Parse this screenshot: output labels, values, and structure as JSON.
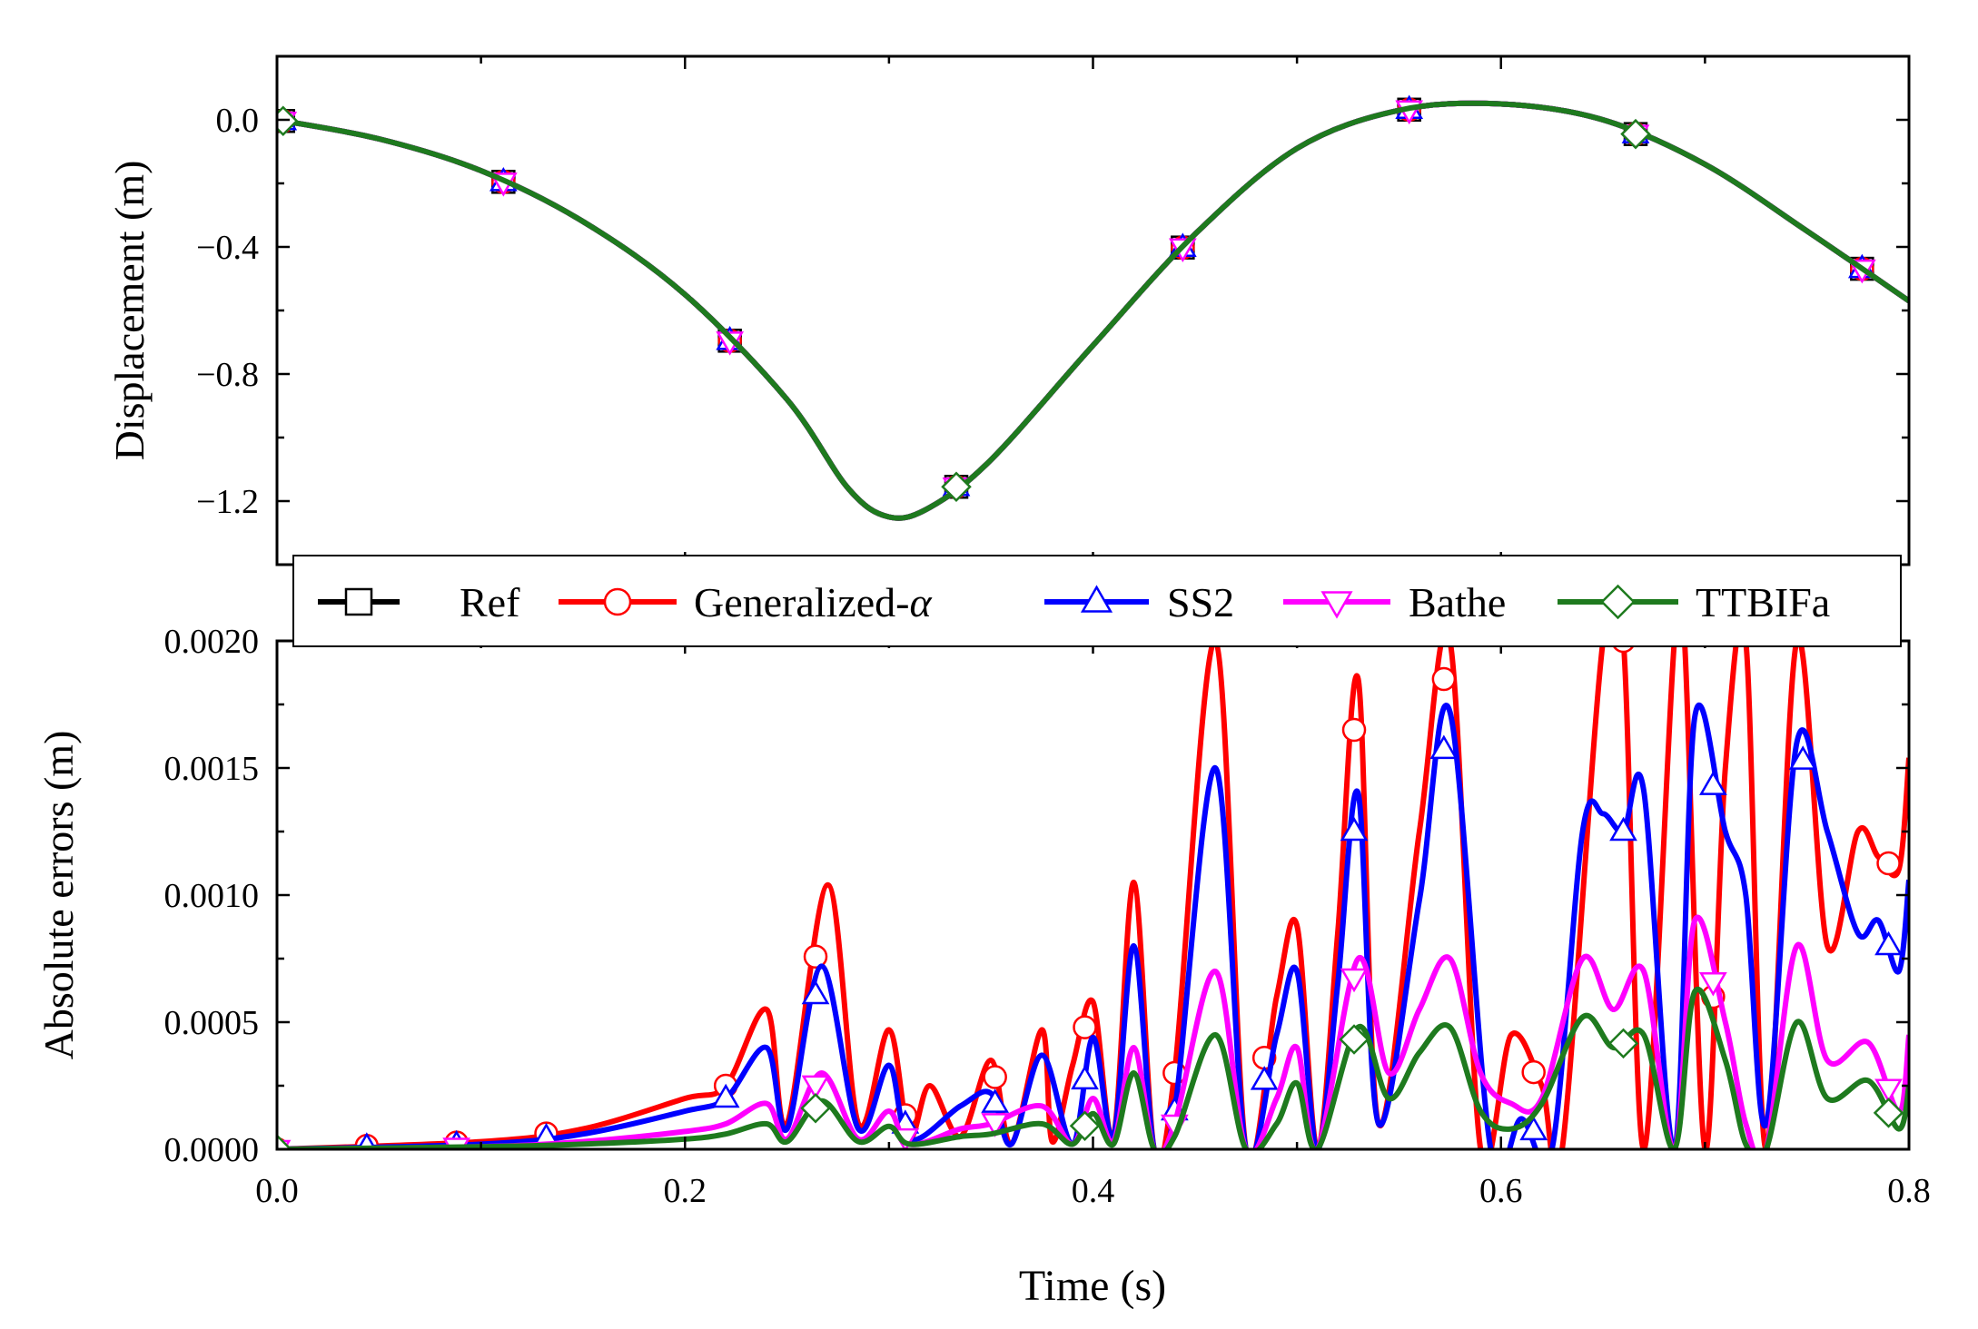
{
  "chart_data": [
    {
      "type": "line",
      "panel": "top",
      "title": "",
      "xlabel": "",
      "ylabel": "Displacement (m)",
      "xlim": [
        0.0,
        0.8
      ],
      "ylim": [
        -1.4,
        0.2
      ],
      "xticks": [
        0.0,
        0.2,
        0.4,
        0.6,
        0.8
      ],
      "yticks": [
        0.0,
        -0.4,
        -0.8,
        -1.2
      ],
      "ytick_labels": [
        "0.0",
        "−0.4",
        "−0.8",
        "−1.2"
      ],
      "grid": false,
      "series": [
        {
          "name": "Ref",
          "color": "#000000",
          "marker": "square",
          "x": [
            0.0,
            0.05,
            0.1,
            0.15,
            0.2,
            0.25,
            0.28,
            0.3,
            0.32,
            0.35,
            0.4,
            0.45,
            0.5,
            0.55,
            0.6,
            0.65,
            0.7,
            0.75,
            0.8
          ],
          "y": [
            0.0,
            -0.06,
            -0.16,
            -0.32,
            -0.55,
            -0.88,
            -1.16,
            -1.25,
            -1.22,
            -1.07,
            -0.71,
            -0.36,
            -0.09,
            0.03,
            0.05,
            0.0,
            -0.14,
            -0.35,
            -0.57
          ],
          "marker_x": [
            0.003,
            0.111,
            0.222,
            0.333,
            0.444,
            0.555,
            0.666,
            0.777
          ]
        },
        {
          "name": "Generalized-α",
          "color": "#ff0000",
          "marker": "circle",
          "x": [
            0.0,
            0.05,
            0.1,
            0.15,
            0.2,
            0.25,
            0.28,
            0.3,
            0.32,
            0.35,
            0.4,
            0.45,
            0.5,
            0.55,
            0.6,
            0.65,
            0.7,
            0.75,
            0.8
          ],
          "y": [
            0.0,
            -0.06,
            -0.16,
            -0.32,
            -0.55,
            -0.88,
            -1.16,
            -1.25,
            -1.22,
            -1.07,
            -0.71,
            -0.36,
            -0.09,
            0.03,
            0.05,
            0.0,
            -0.14,
            -0.35,
            -0.57
          ],
          "marker_x": [
            0.003,
            0.111,
            0.222,
            0.333,
            0.444,
            0.555,
            0.666,
            0.777
          ]
        },
        {
          "name": "SS2",
          "color": "#0000ff",
          "marker": "triangle-up",
          "x": [
            0.0,
            0.05,
            0.1,
            0.15,
            0.2,
            0.25,
            0.28,
            0.3,
            0.32,
            0.35,
            0.4,
            0.45,
            0.5,
            0.55,
            0.6,
            0.65,
            0.7,
            0.75,
            0.8
          ],
          "y": [
            0.0,
            -0.06,
            -0.16,
            -0.32,
            -0.55,
            -0.88,
            -1.16,
            -1.25,
            -1.22,
            -1.07,
            -0.71,
            -0.36,
            -0.09,
            0.03,
            0.05,
            0.0,
            -0.14,
            -0.35,
            -0.57
          ],
          "marker_x": [
            0.003,
            0.111,
            0.222,
            0.333,
            0.444,
            0.555,
            0.666,
            0.777
          ]
        },
        {
          "name": "Bathe",
          "color": "#ff00ff",
          "marker": "triangle-down",
          "x": [
            0.0,
            0.05,
            0.1,
            0.15,
            0.2,
            0.25,
            0.28,
            0.3,
            0.32,
            0.35,
            0.4,
            0.45,
            0.5,
            0.55,
            0.6,
            0.65,
            0.7,
            0.75,
            0.8
          ],
          "y": [
            0.0,
            -0.06,
            -0.16,
            -0.32,
            -0.55,
            -0.88,
            -1.16,
            -1.25,
            -1.22,
            -1.07,
            -0.71,
            -0.36,
            -0.09,
            0.03,
            0.05,
            0.0,
            -0.14,
            -0.35,
            -0.57
          ],
          "marker_x": [
            0.003,
            0.111,
            0.222,
            0.333,
            0.444,
            0.555,
            0.666,
            0.777
          ]
        },
        {
          "name": "TTBIFa",
          "color": "#1e7a1e",
          "marker": "diamond",
          "x": [
            0.0,
            0.05,
            0.1,
            0.15,
            0.2,
            0.25,
            0.28,
            0.3,
            0.32,
            0.35,
            0.4,
            0.45,
            0.5,
            0.55,
            0.6,
            0.65,
            0.7,
            0.75,
            0.8
          ],
          "y": [
            0.0,
            -0.06,
            -0.16,
            -0.32,
            -0.55,
            -0.88,
            -1.16,
            -1.25,
            -1.22,
            -1.07,
            -0.71,
            -0.36,
            -0.09,
            0.03,
            0.05,
            0.0,
            -0.14,
            -0.35,
            -0.57
          ],
          "marker_x": [
            0.003,
            0.333,
            0.666
          ]
        }
      ]
    },
    {
      "type": "line",
      "panel": "bottom",
      "title": "",
      "xlabel": "Time (s)",
      "ylabel": "Absolute errors (m)",
      "xlim": [
        0.0,
        0.8
      ],
      "ylim": [
        0.0,
        0.002
      ],
      "xticks": [
        0.0,
        0.2,
        0.4,
        0.6,
        0.8
      ],
      "xtick_labels": [
        "0.0",
        "0.2",
        "0.4",
        "0.6",
        "0.8"
      ],
      "yticks": [
        0.0,
        0.0005,
        0.001,
        0.0015,
        0.002
      ],
      "ytick_labels": [
        "0.0000",
        "0.0005",
        "0.0010",
        "0.0015",
        "0.0020"
      ],
      "grid": false,
      "series": [
        {
          "name": "Generalized-α",
          "color": "#ff0000",
          "marker": "circle",
          "x": [
            0.0,
            0.1,
            0.15,
            0.2,
            0.22,
            0.24,
            0.25,
            0.27,
            0.285,
            0.3,
            0.31,
            0.32,
            0.335,
            0.35,
            0.36,
            0.375,
            0.38,
            0.39,
            0.4,
            0.41,
            0.42,
            0.43,
            0.44,
            0.46,
            0.475,
            0.49,
            0.5,
            0.51,
            0.52,
            0.53,
            0.54,
            0.56,
            0.575,
            0.59,
            0.605,
            0.62,
            0.63,
            0.65,
            0.66,
            0.67,
            0.685,
            0.69,
            0.7,
            0.71,
            0.72,
            0.73,
            0.745,
            0.76,
            0.775,
            0.785,
            0.795,
            0.8
          ],
          "y": [
            0.0,
            3e-05,
            8e-05,
            0.0002,
            0.00025,
            0.00055,
            0.0001,
            0.00104,
            0.0001,
            0.00047,
            5e-05,
            0.00025,
            5e-05,
            0.00035,
            2e-05,
            0.00047,
            3e-05,
            0.00033,
            0.00058,
            5e-05,
            0.00105,
            0.0,
            0.0003,
            0.002,
            0.0,
            0.0006,
            0.00088,
            0.0,
            0.00085,
            0.00185,
            0.0001,
            0.00125,
            0.002,
            0.0,
            0.00045,
            0.00025,
            0.0,
            0.002,
            0.002,
            0.0,
            0.002,
            0.002,
            0.0,
            0.0015,
            0.002,
            0.0,
            0.002,
            0.0008,
            0.00125,
            0.00115,
            0.0011,
            0.00154
          ],
          "marker_x": [
            0.0,
            0.044,
            0.088,
            0.132,
            0.22,
            0.264,
            0.308,
            0.352,
            0.396,
            0.44,
            0.484,
            0.528,
            0.572,
            0.616,
            0.66,
            0.704,
            0.79
          ]
        },
        {
          "name": "SS2",
          "color": "#0000ff",
          "marker": "triangle-up",
          "x": [
            0.0,
            0.1,
            0.15,
            0.2,
            0.22,
            0.24,
            0.25,
            0.267,
            0.285,
            0.3,
            0.31,
            0.335,
            0.35,
            0.36,
            0.375,
            0.39,
            0.4,
            0.41,
            0.42,
            0.43,
            0.44,
            0.46,
            0.475,
            0.49,
            0.5,
            0.51,
            0.52,
            0.53,
            0.54,
            0.56,
            0.575,
            0.595,
            0.61,
            0.625,
            0.64,
            0.65,
            0.66,
            0.67,
            0.685,
            0.695,
            0.71,
            0.72,
            0.73,
            0.745,
            0.76,
            0.775,
            0.785,
            0.795,
            0.8
          ],
          "y": [
            0.0,
            2e-05,
            6e-05,
            0.00015,
            0.0002,
            0.0004,
            8e-05,
            0.00072,
            8e-05,
            0.00033,
            4e-05,
            0.00017,
            0.00022,
            2e-05,
            0.00037,
            2e-05,
            0.00044,
            5e-05,
            0.0008,
            0.0,
            0.00015,
            0.0015,
            0.0,
            0.00045,
            0.0007,
            0.0,
            0.00065,
            0.0014,
            0.0001,
            0.00098,
            0.00172,
            0.0,
            0.00012,
            0.0,
            0.00125,
            0.00132,
            0.00125,
            0.00141,
            0.0,
            0.0017,
            0.00125,
            0.001,
            0.0001,
            0.0016,
            0.00125,
            0.00085,
            0.0009,
            0.0007,
            0.00106
          ],
          "marker_x": [
            0.0,
            0.044,
            0.088,
            0.132,
            0.22,
            0.264,
            0.308,
            0.352,
            0.396,
            0.44,
            0.484,
            0.528,
            0.572,
            0.616,
            0.66,
            0.704,
            0.748,
            0.79
          ]
        },
        {
          "name": "Bathe",
          "color": "#ff00ff",
          "marker": "triangle-down",
          "x": [
            0.0,
            0.1,
            0.15,
            0.2,
            0.22,
            0.24,
            0.25,
            0.267,
            0.285,
            0.3,
            0.31,
            0.335,
            0.35,
            0.375,
            0.39,
            0.4,
            0.41,
            0.42,
            0.43,
            0.44,
            0.46,
            0.475,
            0.49,
            0.5,
            0.51,
            0.53,
            0.545,
            0.56,
            0.575,
            0.59,
            0.605,
            0.62,
            0.64,
            0.655,
            0.67,
            0.685,
            0.695,
            0.71,
            0.72,
            0.73,
            0.745,
            0.76,
            0.78,
            0.795,
            0.8
          ],
          "y": [
            0.0,
            1e-05,
            3e-05,
            7e-05,
            0.0001,
            0.00018,
            4e-05,
            0.0003,
            4e-05,
            0.00015,
            2e-05,
            8e-05,
            0.0001,
            0.00017,
            2e-05,
            0.0002,
            3e-05,
            0.0004,
            0.0,
            0.0001,
            0.0007,
            0.0,
            0.0002,
            0.0004,
            0.0,
            0.00075,
            0.0003,
            0.00055,
            0.00075,
            0.0003,
            0.00018,
            0.0002,
            0.00075,
            0.00055,
            0.0007,
            0.0,
            0.0009,
            0.0005,
            0.0001,
            0.0,
            0.0008,
            0.00035,
            0.00042,
            0.00015,
            0.00045
          ],
          "marker_x": [
            0.0,
            0.088,
            0.264,
            0.308,
            0.352,
            0.44,
            0.528,
            0.704,
            0.79
          ]
        },
        {
          "name": "TTBIFa",
          "color": "#1e7a1e",
          "marker": "diamond",
          "x": [
            0.0,
            0.1,
            0.15,
            0.2,
            0.22,
            0.24,
            0.25,
            0.267,
            0.285,
            0.3,
            0.31,
            0.335,
            0.35,
            0.375,
            0.39,
            0.4,
            0.41,
            0.42,
            0.43,
            0.44,
            0.46,
            0.475,
            0.49,
            0.5,
            0.51,
            0.53,
            0.545,
            0.56,
            0.575,
            0.59,
            0.605,
            0.62,
            0.64,
            0.655,
            0.67,
            0.685,
            0.695,
            0.71,
            0.72,
            0.73,
            0.745,
            0.76,
            0.78,
            0.795,
            0.8
          ],
          "y": [
            0.0,
            1e-05,
            2e-05,
            4e-05,
            6e-05,
            0.0001,
            3e-05,
            0.00019,
            3e-05,
            9e-05,
            2e-05,
            5e-05,
            6e-05,
            0.0001,
            2e-05,
            0.00014,
            2e-05,
            0.0003,
            0.0,
            5e-05,
            0.00045,
            0.0,
            0.0001,
            0.00026,
            0.0,
            0.00048,
            0.0002,
            0.00038,
            0.00048,
            0.00015,
            8e-05,
            0.00018,
            0.00052,
            0.0004,
            0.00045,
            0.0,
            0.00062,
            0.00035,
            2e-05,
            0.0,
            0.0005,
            0.0002,
            0.00027,
            8e-05,
            0.00025
          ],
          "marker_x": [
            0.0,
            0.264,
            0.396,
            0.528,
            0.66,
            0.79
          ]
        }
      ]
    }
  ],
  "legend": {
    "placement": "between panels",
    "items": [
      {
        "label": "Ref",
        "color": "#000000",
        "marker": "square"
      },
      {
        "label": "Generalized-",
        "suffix": "α",
        "color": "#ff0000",
        "marker": "circle"
      },
      {
        "label": "SS2",
        "color": "#0000ff",
        "marker": "triangle-up"
      },
      {
        "label": "Bathe",
        "color": "#ff00ff",
        "marker": "triangle-down"
      },
      {
        "label": "TTBIFa",
        "color": "#1e7a1e",
        "marker": "diamond"
      }
    ]
  }
}
